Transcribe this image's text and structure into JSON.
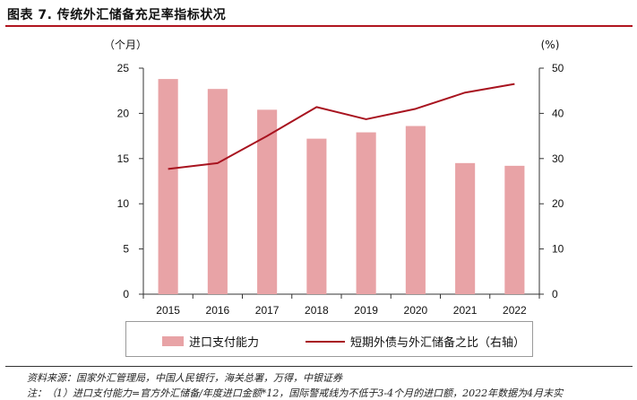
{
  "header": {
    "title": "图表 7. 传统外汇储备充足率指标状况"
  },
  "chart_data": {
    "type": "bar",
    "categories": [
      "2015",
      "2016",
      "2017",
      "2018",
      "2019",
      "2020",
      "2021",
      "2022"
    ],
    "series": [
      {
        "name": "进口支付能力",
        "kind": "bar",
        "axis": "left",
        "color": "#e8a3a6",
        "values": [
          23.8,
          22.7,
          20.4,
          17.2,
          17.9,
          18.6,
          14.5,
          14.2
        ]
      },
      {
        "name": "短期外债与外汇储备之比（右轴）",
        "kind": "line",
        "axis": "right",
        "color": "#a8131f",
        "values": [
          27.7,
          29.0,
          35.0,
          41.4,
          38.7,
          41.0,
          44.6,
          46.5
        ]
      }
    ],
    "y_left": {
      "unit": "（个月）",
      "lim": [
        0,
        25
      ],
      "ticks": [
        "0",
        "5",
        "10",
        "15",
        "20",
        "25"
      ]
    },
    "y_right": {
      "unit": "(%)",
      "lim": [
        0,
        50
      ],
      "ticks": [
        "0",
        "10",
        "20",
        "30",
        "40",
        "50"
      ]
    },
    "grid": false,
    "legend_position": "bottom"
  },
  "footer": {
    "source": "资料来源：国家外汇管理局，中国人民银行，海关总署，万得，中银证券",
    "note": "注：（1）进口支付能力=官方外汇储备/年度进口金额*12，国际警戒线为不低于3-4个月的进口额，2022年数据为4月末实"
  }
}
